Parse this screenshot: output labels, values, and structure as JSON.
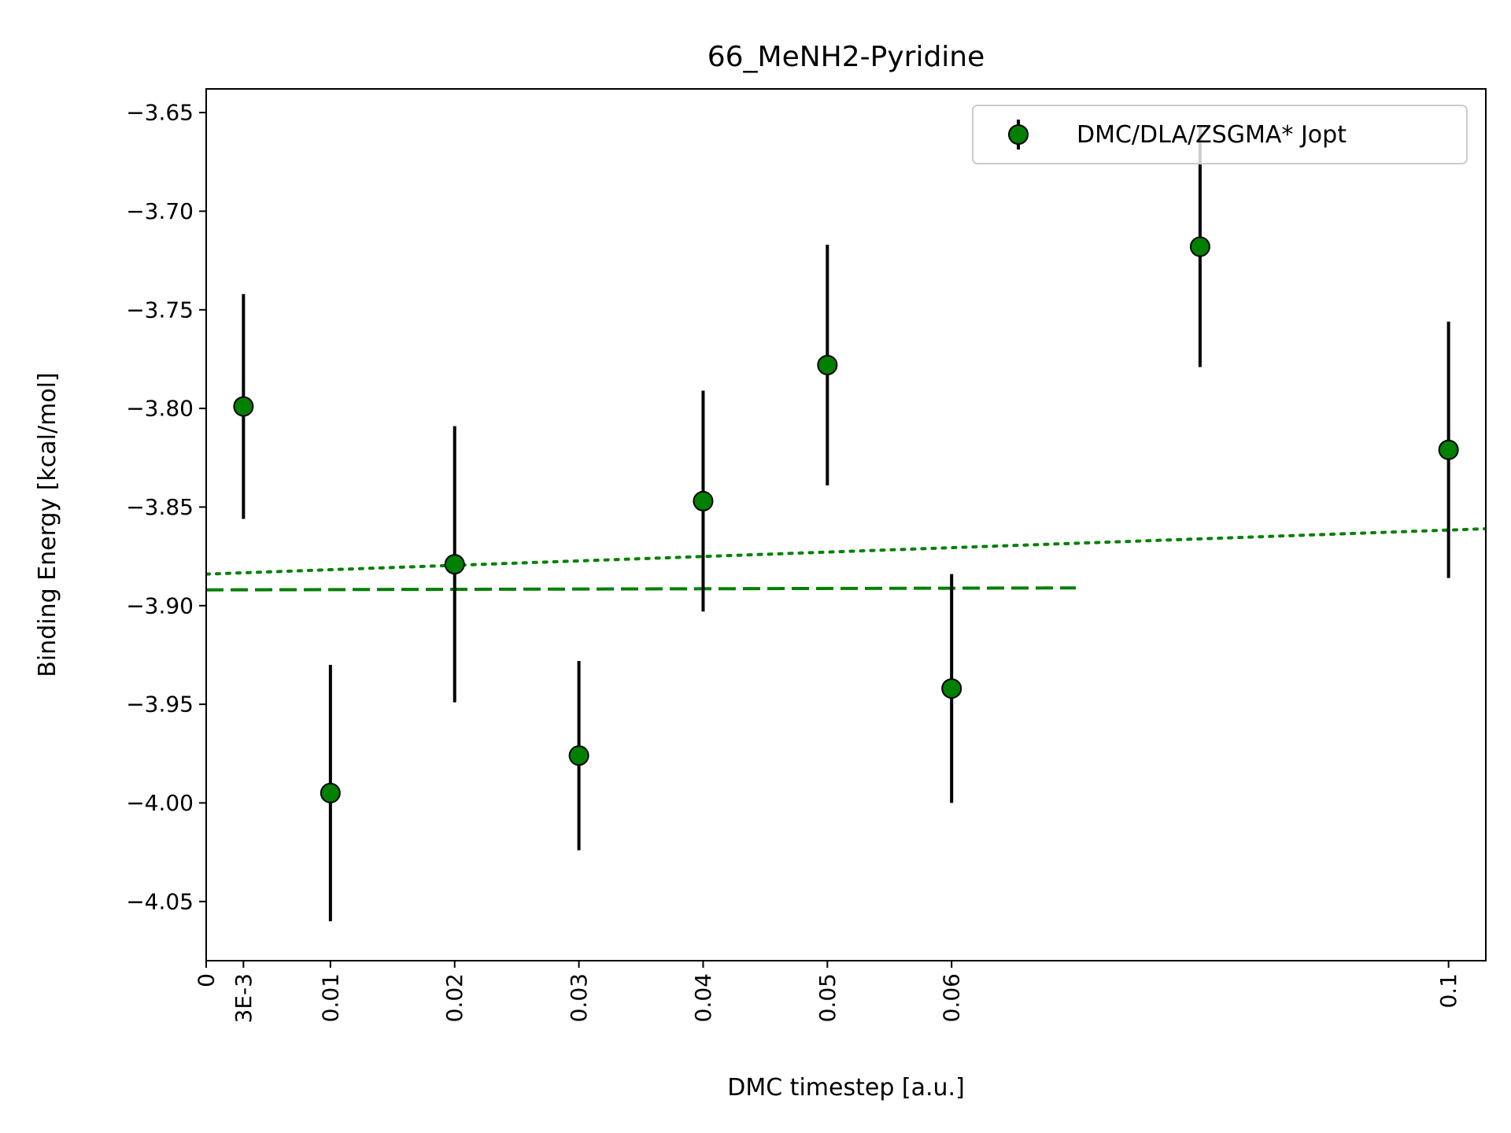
{
  "chart_data": {
    "type": "scatter",
    "title": "66_MeNH2-Pyridine",
    "xlabel": "DMC timestep [a.u.]",
    "ylabel": "Binding Energy [kcal/mol]",
    "xlim": [
      0,
      0.103
    ],
    "ylim": [
      -4.08,
      -3.638
    ],
    "xticks": [
      {
        "value": 0,
        "label": "0"
      },
      {
        "value": 0.003,
        "label": "3E-3"
      },
      {
        "value": 0.01,
        "label": "0.01"
      },
      {
        "value": 0.02,
        "label": "0.02"
      },
      {
        "value": 0.03,
        "label": "0.03"
      },
      {
        "value": 0.04,
        "label": "0.04"
      },
      {
        "value": 0.05,
        "label": "0.05"
      },
      {
        "value": 0.06,
        "label": "0.06"
      },
      {
        "value": 0.1,
        "label": "0.1"
      }
    ],
    "yticks": [
      {
        "value": -3.65,
        "label": "−3.65"
      },
      {
        "value": -3.7,
        "label": "−3.70"
      },
      {
        "value": -3.75,
        "label": "−3.75"
      },
      {
        "value": -3.8,
        "label": "−3.80"
      },
      {
        "value": -3.85,
        "label": "−3.85"
      },
      {
        "value": -3.9,
        "label": "−3.90"
      },
      {
        "value": -3.95,
        "label": "−3.95"
      },
      {
        "value": -4.0,
        "label": "−4.00"
      },
      {
        "value": -4.05,
        "label": "−4.05"
      }
    ],
    "grid": false,
    "legend_position": "top-right",
    "series": [
      {
        "name": "DMC/DLA/ZSGMA* Jopt",
        "color": "#008000",
        "edge_color": "#000000",
        "error_color": "#000000",
        "points": [
          {
            "x": 0.003,
            "y": -3.799,
            "err": 0.057
          },
          {
            "x": 0.01,
            "y": -3.995,
            "err": 0.065
          },
          {
            "x": 0.02,
            "y": -3.879,
            "err": 0.07
          },
          {
            "x": 0.03,
            "y": -3.976,
            "err": 0.048
          },
          {
            "x": 0.04,
            "y": -3.847,
            "err": 0.056
          },
          {
            "x": 0.05,
            "y": -3.778,
            "err": 0.061
          },
          {
            "x": 0.06,
            "y": -3.942,
            "err": 0.058
          },
          {
            "x": 0.08,
            "y": -3.718,
            "err": 0.061
          },
          {
            "x": 0.1,
            "y": -3.821,
            "err": 0.065
          }
        ]
      }
    ],
    "fit_lines": [
      {
        "style": "dashed",
        "color": "#008000",
        "x": [
          0,
          0.07
        ],
        "y": [
          -3.892,
          -3.891
        ]
      },
      {
        "style": "dotted",
        "color": "#008000",
        "x": [
          0,
          0.103
        ],
        "y": [
          -3.884,
          -3.861
        ]
      }
    ]
  }
}
